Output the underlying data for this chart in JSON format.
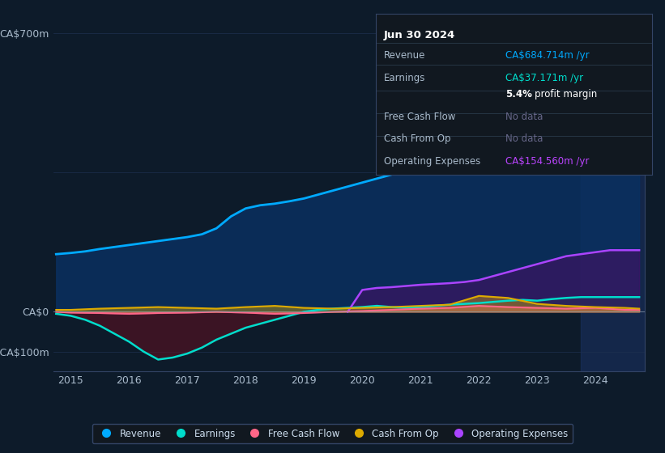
{
  "bg_color": "#0d1b2a",
  "chart_bg": "#0d1b2a",
  "grid_color": "#1e3050",
  "zero_line_color": "#8899aa",
  "title_panel": "Jun 30 2024",
  "ylim": [
    -150,
    750
  ],
  "xlim": [
    2014.7,
    2024.85
  ],
  "xticks": [
    2015,
    2016,
    2017,
    2018,
    2019,
    2020,
    2021,
    2022,
    2023,
    2024
  ],
  "legend_items": [
    {
      "label": "Revenue",
      "color": "#00aaff"
    },
    {
      "label": "Earnings",
      "color": "#00ddcc"
    },
    {
      "label": "Free Cash Flow",
      "color": "#ff6688"
    },
    {
      "label": "Cash From Op",
      "color": "#ddaa00"
    },
    {
      "label": "Operating Expenses",
      "color": "#aa44ff"
    }
  ],
  "revenue": {
    "x": [
      2014.75,
      2015.0,
      2015.25,
      2015.5,
      2015.75,
      2016.0,
      2016.25,
      2016.5,
      2016.75,
      2017.0,
      2017.25,
      2017.5,
      2017.75,
      2018.0,
      2018.25,
      2018.5,
      2018.75,
      2019.0,
      2019.25,
      2019.5,
      2019.75,
      2020.0,
      2020.25,
      2020.5,
      2020.75,
      2021.0,
      2021.25,
      2021.5,
      2021.75,
      2022.0,
      2022.25,
      2022.5,
      2022.75,
      2023.0,
      2023.25,
      2023.5,
      2023.75,
      2024.0,
      2024.25,
      2024.5,
      2024.75
    ],
    "y": [
      145,
      148,
      152,
      158,
      163,
      168,
      173,
      178,
      183,
      188,
      195,
      210,
      240,
      260,
      268,
      272,
      278,
      285,
      295,
      305,
      315,
      325,
      335,
      345,
      360,
      375,
      390,
      405,
      420,
      435,
      455,
      475,
      495,
      515,
      545,
      580,
      620,
      650,
      665,
      680,
      685
    ],
    "color": "#00aaff",
    "fill_color": "#0a3060",
    "fill_alpha": 0.85
  },
  "earnings": {
    "x": [
      2014.75,
      2015.0,
      2015.25,
      2015.5,
      2015.75,
      2016.0,
      2016.25,
      2016.5,
      2016.75,
      2017.0,
      2017.25,
      2017.5,
      2017.75,
      2018.0,
      2018.25,
      2018.5,
      2018.75,
      2019.0,
      2019.25,
      2019.5,
      2019.75,
      2020.0,
      2020.25,
      2020.5,
      2020.75,
      2021.0,
      2021.25,
      2021.5,
      2021.75,
      2022.0,
      2022.25,
      2022.5,
      2022.75,
      2023.0,
      2023.25,
      2023.5,
      2023.75,
      2024.0,
      2024.25,
      2024.5,
      2024.75
    ],
    "y": [
      -5,
      -10,
      -20,
      -35,
      -55,
      -75,
      -100,
      -120,
      -115,
      -105,
      -90,
      -70,
      -55,
      -40,
      -30,
      -20,
      -10,
      0,
      5,
      8,
      10,
      12,
      15,
      12,
      10,
      12,
      15,
      18,
      20,
      22,
      25,
      28,
      30,
      28,
      32,
      35,
      37,
      37,
      37,
      37,
      37
    ],
    "color": "#00ddcc",
    "fill_above_color": "#0a5040",
    "fill_below_color": "#5a1020",
    "fill_alpha": 0.6
  },
  "free_cash_flow": {
    "x": [
      2014.75,
      2015.0,
      2015.5,
      2016.0,
      2016.5,
      2017.0,
      2017.5,
      2018.0,
      2018.5,
      2019.0,
      2019.5,
      2020.0,
      2020.5,
      2021.0,
      2021.5,
      2022.0,
      2022.5,
      2023.0,
      2023.5,
      2024.0,
      2024.5,
      2024.75
    ],
    "y": [
      0,
      -2,
      -3,
      -5,
      -3,
      -2,
      0,
      -2,
      -5,
      -3,
      0,
      2,
      5,
      8,
      10,
      15,
      12,
      10,
      8,
      10,
      5,
      5
    ],
    "color": "#ff6688",
    "fill_alpha": 0.4
  },
  "cash_from_op": {
    "x": [
      2014.75,
      2015.0,
      2015.5,
      2016.0,
      2016.5,
      2017.0,
      2017.5,
      2018.0,
      2018.5,
      2019.0,
      2019.5,
      2020.0,
      2020.5,
      2021.0,
      2021.5,
      2022.0,
      2022.5,
      2023.0,
      2023.5,
      2024.0,
      2024.5,
      2024.75
    ],
    "y": [
      5,
      5,
      8,
      10,
      12,
      10,
      8,
      12,
      15,
      10,
      8,
      10,
      12,
      15,
      18,
      40,
      35,
      20,
      15,
      12,
      10,
      8
    ],
    "color": "#ddaa00",
    "fill_alpha": 0.4
  },
  "op_expenses": {
    "x": [
      2019.75,
      2020.0,
      2020.25,
      2020.5,
      2020.75,
      2021.0,
      2021.25,
      2021.5,
      2021.75,
      2022.0,
      2022.25,
      2022.5,
      2022.75,
      2023.0,
      2023.25,
      2023.5,
      2023.75,
      2024.0,
      2024.25,
      2024.5,
      2024.75
    ],
    "y": [
      0,
      55,
      60,
      62,
      65,
      68,
      70,
      72,
      75,
      80,
      90,
      100,
      110,
      120,
      130,
      140,
      145,
      150,
      155,
      155,
      155
    ],
    "color": "#aa44ff",
    "fill_color": "#441166",
    "fill_alpha": 0.6
  },
  "highlight_x": 2023.75,
  "highlight_color": "#1a3060"
}
